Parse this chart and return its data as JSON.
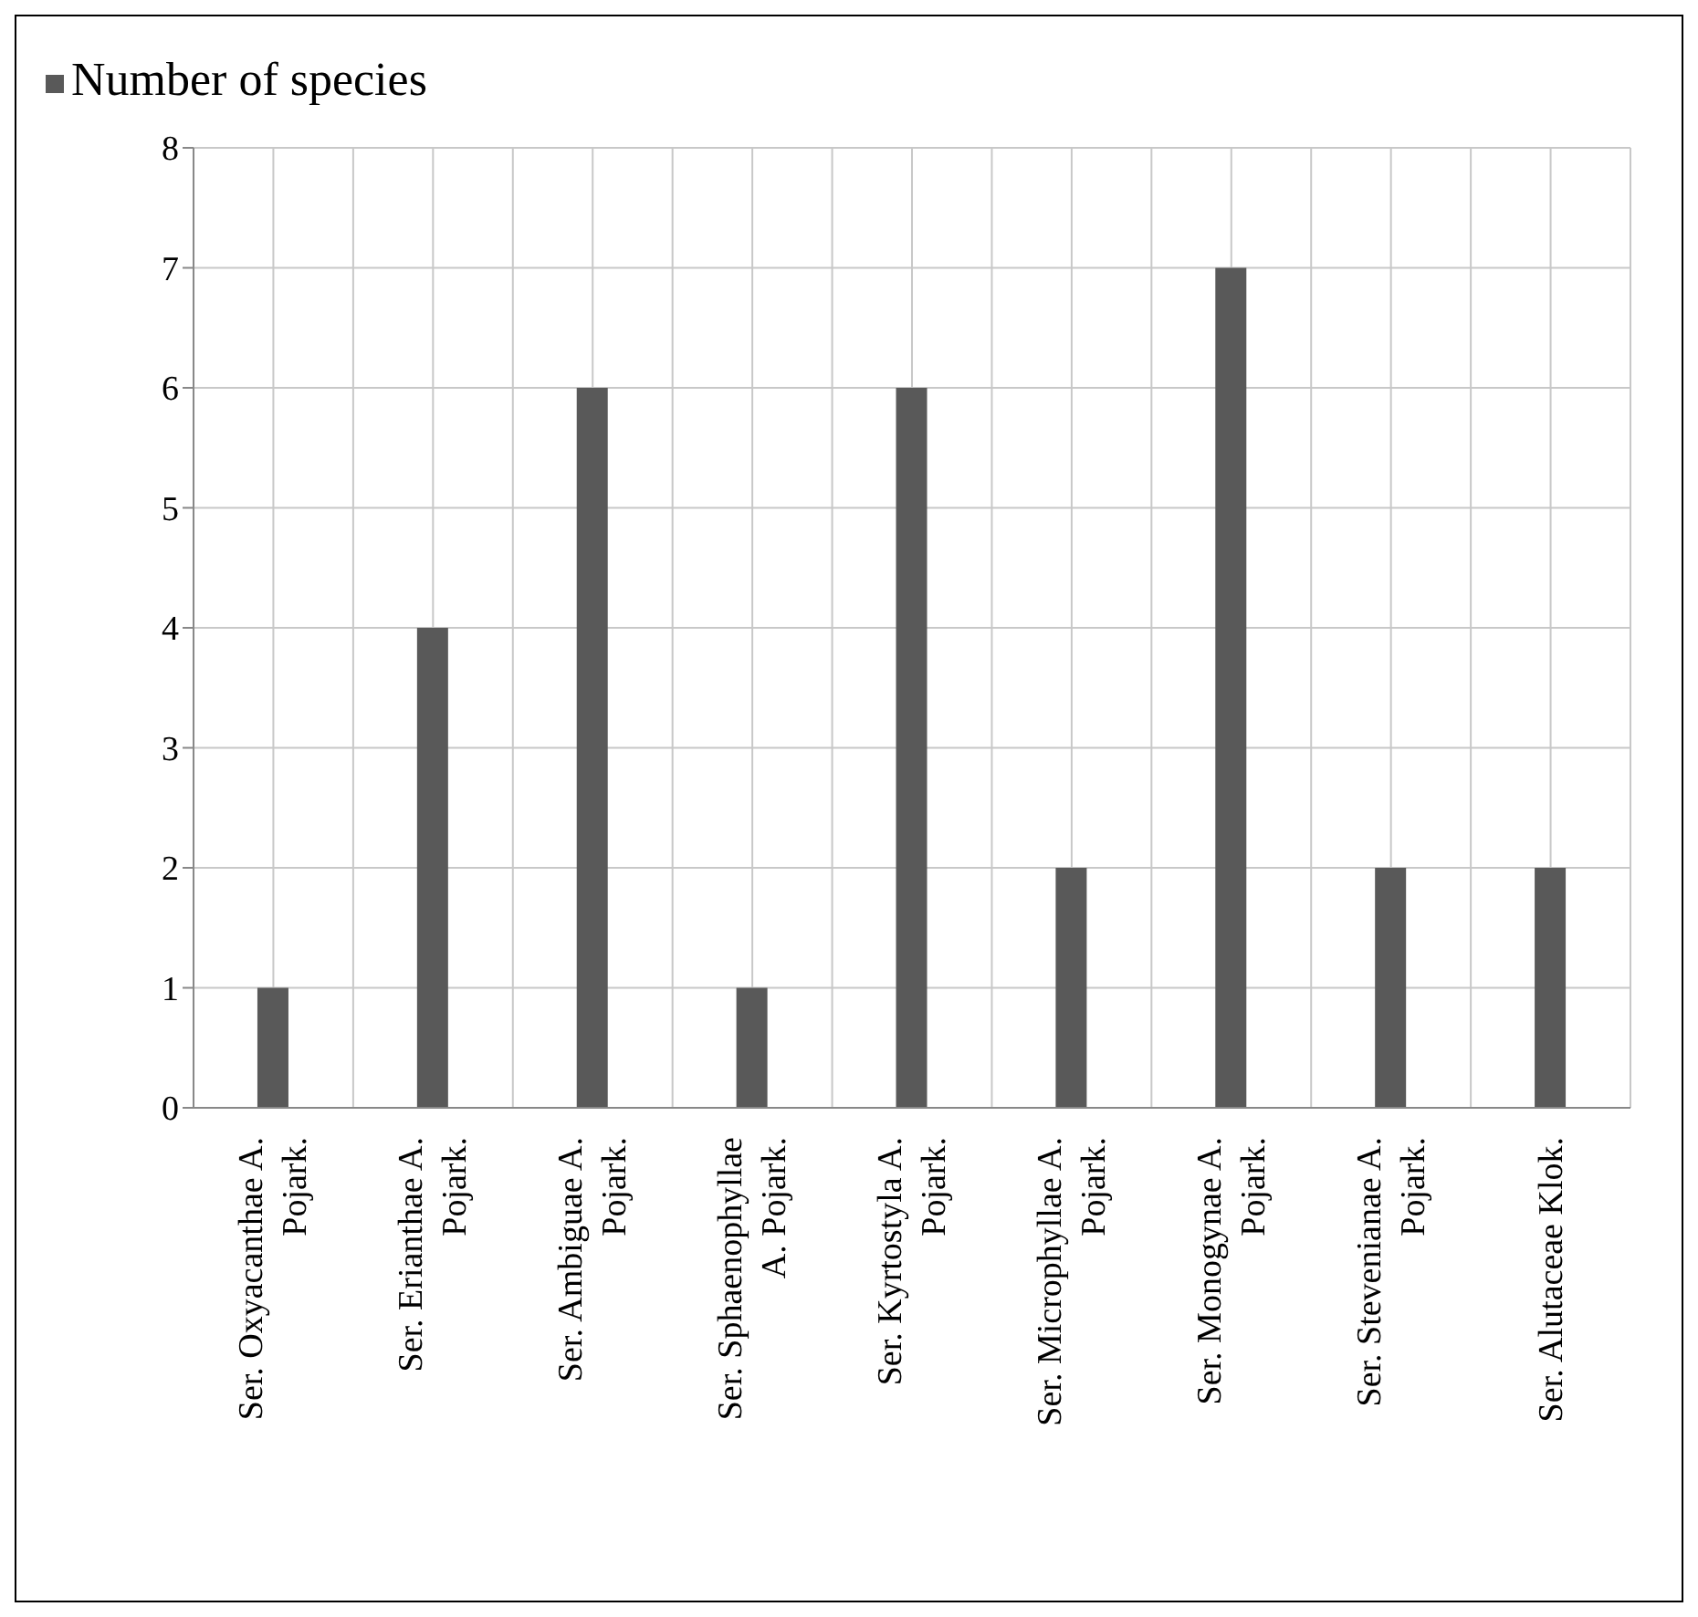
{
  "chart_data": {
    "type": "bar",
    "categories": [
      "Ser. Oxyacanthae A. Pojark.",
      "Ser. Erianthae A. Pojark.",
      "Ser. Ambiguae A. Pojark.",
      "Ser. Sphaenophyllae A. Pojark.",
      "Ser. Kyrtostyla A. Pojark.",
      "Ser. Microphyllae A. Pojark.",
      "Ser. Monogynae A. Pojark.",
      "Ser. Stevenianae A. Pojark.",
      "Ser. Alutaceae Klok."
    ],
    "series": [
      {
        "name": "Number of species",
        "color": "#595959",
        "values": [
          1,
          4,
          6,
          1,
          6,
          2,
          7,
          2,
          2
        ]
      }
    ],
    "ylim": [
      0,
      8
    ],
    "yticks": [
      0,
      1,
      2,
      3,
      4,
      5,
      6,
      7,
      8
    ],
    "grid": true,
    "legend": "top left"
  }
}
